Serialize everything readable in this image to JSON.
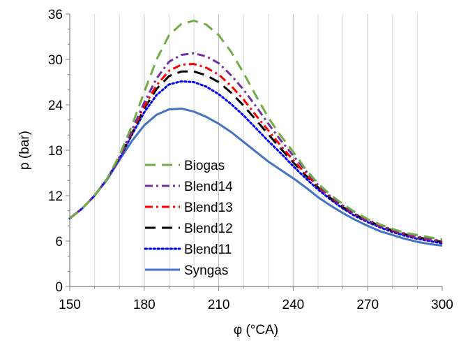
{
  "chart_data": {
    "type": "line",
    "xlabel": "φ (°CA)",
    "ylabel": "p (bar)",
    "xlim": [
      150,
      300
    ],
    "ylim": [
      0,
      36
    ],
    "xticks": [
      150,
      180,
      210,
      240,
      270,
      300
    ],
    "yticks": [
      0,
      6,
      12,
      18,
      24,
      30,
      36
    ],
    "grid": "vertical major and minor, none horizontal",
    "legend_position": "bottom-left inside plot",
    "series": [
      {
        "name": "Biogas",
        "color": "#70AD47",
        "dash": "long-dash",
        "points": [
          [
            150,
            9.0
          ],
          [
            155,
            10.3
          ],
          [
            160,
            12.0
          ],
          [
            165,
            14.2
          ],
          [
            170,
            17.3
          ],
          [
            175,
            21.2
          ],
          [
            180,
            25.7
          ],
          [
            185,
            30.0
          ],
          [
            190,
            33.2
          ],
          [
            195,
            34.7
          ],
          [
            200,
            35.1
          ],
          [
            205,
            34.6
          ],
          [
            210,
            33.2
          ],
          [
            215,
            31.0
          ],
          [
            220,
            28.2
          ],
          [
            225,
            25.2
          ],
          [
            230,
            22.3
          ],
          [
            235,
            19.9
          ],
          [
            240,
            17.8
          ],
          [
            245,
            15.5
          ],
          [
            250,
            13.6
          ],
          [
            255,
            12.1
          ],
          [
            260,
            10.9
          ],
          [
            265,
            9.8
          ],
          [
            270,
            8.9
          ],
          [
            275,
            8.2
          ],
          [
            280,
            7.6
          ],
          [
            285,
            7.1
          ],
          [
            290,
            6.8
          ],
          [
            295,
            6.5
          ],
          [
            300,
            6.2
          ]
        ]
      },
      {
        "name": "Blend14",
        "color": "#7030A0",
        "dash": "dash-dot",
        "points": [
          [
            150,
            9.0
          ],
          [
            155,
            10.3
          ],
          [
            160,
            12.0
          ],
          [
            165,
            14.2
          ],
          [
            170,
            17.1
          ],
          [
            175,
            20.6
          ],
          [
            180,
            24.3
          ],
          [
            185,
            27.5
          ],
          [
            190,
            29.7
          ],
          [
            195,
            30.6
          ],
          [
            200,
            30.8
          ],
          [
            205,
            30.4
          ],
          [
            210,
            29.5
          ],
          [
            215,
            27.9
          ],
          [
            220,
            26.0
          ],
          [
            225,
            23.8
          ],
          [
            230,
            21.5
          ],
          [
            235,
            19.3
          ],
          [
            240,
            17.3
          ],
          [
            245,
            15.3
          ],
          [
            250,
            13.4
          ],
          [
            255,
            11.9
          ],
          [
            260,
            10.7
          ],
          [
            265,
            9.6
          ],
          [
            270,
            8.8
          ],
          [
            275,
            8.1
          ],
          [
            280,
            7.5
          ],
          [
            285,
            7.0
          ],
          [
            290,
            6.6
          ],
          [
            295,
            6.3
          ],
          [
            300,
            6.0
          ]
        ]
      },
      {
        "name": "Blend13",
        "color": "#FF0000",
        "dash": "dash-dot",
        "points": [
          [
            150,
            9.0
          ],
          [
            155,
            10.3
          ],
          [
            160,
            12.0
          ],
          [
            165,
            14.2
          ],
          [
            170,
            17.0
          ],
          [
            175,
            20.4
          ],
          [
            180,
            23.8
          ],
          [
            185,
            26.6
          ],
          [
            190,
            28.5
          ],
          [
            195,
            29.3
          ],
          [
            200,
            29.4
          ],
          [
            205,
            28.9
          ],
          [
            210,
            28.0
          ],
          [
            215,
            26.5
          ],
          [
            220,
            24.7
          ],
          [
            225,
            22.6
          ],
          [
            230,
            20.6
          ],
          [
            235,
            18.6
          ],
          [
            240,
            16.7
          ],
          [
            245,
            14.9
          ],
          [
            250,
            13.2
          ],
          [
            255,
            11.8
          ],
          [
            260,
            10.6
          ],
          [
            265,
            9.5
          ],
          [
            270,
            8.7
          ],
          [
            275,
            8.0
          ],
          [
            280,
            7.4
          ],
          [
            285,
            6.9
          ],
          [
            290,
            6.5
          ],
          [
            295,
            6.2
          ],
          [
            300,
            5.9
          ]
        ]
      },
      {
        "name": "Blend12",
        "color": "#000000",
        "dash": "long-dash",
        "points": [
          [
            150,
            9.0
          ],
          [
            155,
            10.3
          ],
          [
            160,
            12.0
          ],
          [
            165,
            14.2
          ],
          [
            170,
            17.0
          ],
          [
            175,
            20.2
          ],
          [
            180,
            23.5
          ],
          [
            185,
            26.1
          ],
          [
            190,
            27.8
          ],
          [
            195,
            28.4
          ],
          [
            200,
            28.4
          ],
          [
            205,
            27.9
          ],
          [
            210,
            27.0
          ],
          [
            215,
            25.6
          ],
          [
            220,
            23.9
          ],
          [
            225,
            22.0
          ],
          [
            230,
            20.1
          ],
          [
            235,
            18.2
          ],
          [
            240,
            16.4
          ],
          [
            245,
            14.7
          ],
          [
            250,
            13.1
          ],
          [
            255,
            11.7
          ],
          [
            260,
            10.5
          ],
          [
            265,
            9.5
          ],
          [
            270,
            8.7
          ],
          [
            275,
            8.0
          ],
          [
            280,
            7.4
          ],
          [
            285,
            6.9
          ],
          [
            290,
            6.5
          ],
          [
            295,
            6.2
          ],
          [
            300,
            5.9
          ]
        ]
      },
      {
        "name": "Blend11",
        "color": "#0000FF",
        "dash": "dot",
        "points": [
          [
            150,
            9.0
          ],
          [
            155,
            10.3
          ],
          [
            160,
            12.0
          ],
          [
            165,
            14.2
          ],
          [
            170,
            16.9
          ],
          [
            175,
            20.0
          ],
          [
            180,
            23.0
          ],
          [
            185,
            25.3
          ],
          [
            190,
            26.7
          ],
          [
            195,
            27.1
          ],
          [
            200,
            27.0
          ],
          [
            205,
            26.4
          ],
          [
            210,
            25.4
          ],
          [
            215,
            24.1
          ],
          [
            220,
            22.6
          ],
          [
            225,
            20.9
          ],
          [
            230,
            19.2
          ],
          [
            235,
            17.6
          ],
          [
            240,
            15.9
          ],
          [
            245,
            14.3
          ],
          [
            250,
            12.8
          ],
          [
            255,
            11.5
          ],
          [
            260,
            10.3
          ],
          [
            265,
            9.3
          ],
          [
            270,
            8.5
          ],
          [
            275,
            7.8
          ],
          [
            280,
            7.2
          ],
          [
            285,
            6.7
          ],
          [
            290,
            6.3
          ],
          [
            295,
            6.0
          ],
          [
            300,
            5.7
          ]
        ]
      },
      {
        "name": "Syngas",
        "color": "#4472C4",
        "dash": "solid",
        "points": [
          [
            150,
            9.0
          ],
          [
            155,
            10.3
          ],
          [
            160,
            12.0
          ],
          [
            165,
            14.1
          ],
          [
            170,
            16.7
          ],
          [
            175,
            19.2
          ],
          [
            180,
            21.3
          ],
          [
            185,
            22.7
          ],
          [
            190,
            23.4
          ],
          [
            195,
            23.5
          ],
          [
            200,
            23.1
          ],
          [
            205,
            22.4
          ],
          [
            210,
            21.5
          ],
          [
            215,
            20.4
          ],
          [
            220,
            19.1
          ],
          [
            225,
            17.8
          ],
          [
            230,
            16.5
          ],
          [
            235,
            15.4
          ],
          [
            240,
            14.3
          ],
          [
            245,
            13.1
          ],
          [
            250,
            11.8
          ],
          [
            255,
            10.7
          ],
          [
            260,
            9.7
          ],
          [
            265,
            8.8
          ],
          [
            270,
            8.0
          ],
          [
            275,
            7.3
          ],
          [
            280,
            6.8
          ],
          [
            285,
            6.3
          ],
          [
            290,
            5.9
          ],
          [
            295,
            5.6
          ],
          [
            300,
            5.4
          ]
        ]
      }
    ]
  }
}
